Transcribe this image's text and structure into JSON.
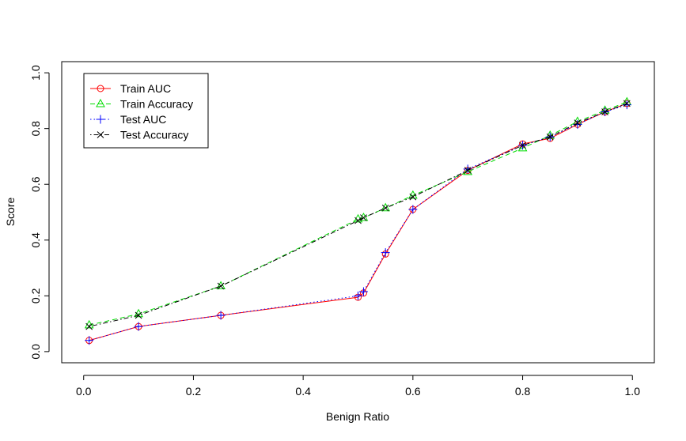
{
  "chart_data": {
    "type": "line",
    "title": "",
    "xlabel": "Benign Ratio",
    "ylabel": "Score",
    "xlim": [
      -0.04,
      1.04
    ],
    "ylim": [
      -0.04,
      1.04
    ],
    "xticks": [
      0.0,
      0.2,
      0.4,
      0.6,
      0.8,
      1.0
    ],
    "xtick_labels": [
      "0.0",
      "0.2",
      "0.4",
      "0.6",
      "0.8",
      "1.0"
    ],
    "yticks": [
      0.0,
      0.2,
      0.4,
      0.6,
      0.8,
      1.0
    ],
    "ytick_labels": [
      "0.0",
      "0.2",
      "0.4",
      "0.6",
      "0.8",
      "1.0"
    ],
    "grid": false,
    "legend_position": "top-left",
    "x": [
      0.01,
      0.1,
      0.25,
      0.5,
      0.51,
      0.55,
      0.6,
      0.7,
      0.8,
      0.85,
      0.9,
      0.95,
      0.99
    ],
    "series": [
      {
        "name": "Train AUC",
        "color": "#ff0000",
        "line_style": "solid",
        "marker": "circle",
        "values": [
          0.04,
          0.09,
          0.13,
          0.195,
          0.21,
          0.35,
          0.51,
          0.65,
          0.745,
          0.765,
          0.815,
          0.86,
          0.89
        ]
      },
      {
        "name": "Train Accuracy",
        "color": "#00dd00",
        "line_style": "dashed",
        "marker": "triangle",
        "values": [
          0.095,
          0.135,
          0.235,
          0.475,
          0.48,
          0.515,
          0.56,
          0.645,
          0.73,
          0.775,
          0.825,
          0.865,
          0.895
        ]
      },
      {
        "name": "Test AUC",
        "color": "#0000ff",
        "line_style": "dotted",
        "marker": "plus",
        "values": [
          0.04,
          0.09,
          0.13,
          0.2,
          0.215,
          0.355,
          0.51,
          0.655,
          0.74,
          0.77,
          0.815,
          0.86,
          0.885
        ]
      },
      {
        "name": "Test Accuracy",
        "color": "#000000",
        "line_style": "dotdash",
        "marker": "x",
        "values": [
          0.09,
          0.13,
          0.235,
          0.47,
          0.48,
          0.515,
          0.555,
          0.65,
          0.74,
          0.77,
          0.82,
          0.86,
          0.89
        ]
      }
    ]
  }
}
